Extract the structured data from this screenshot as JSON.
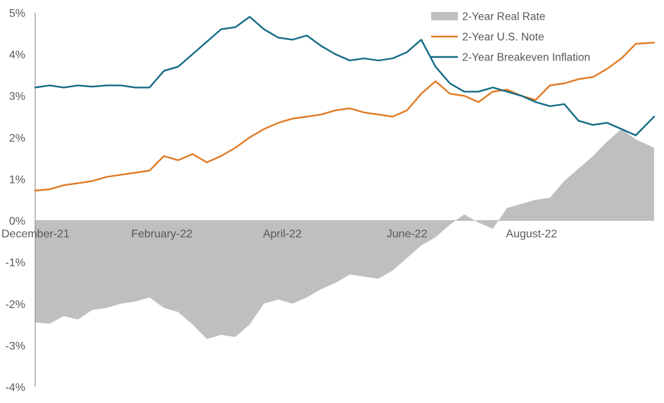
{
  "chart_data": {
    "type": "line",
    "title": "",
    "xlabel": "",
    "ylabel": "",
    "ylim": [
      -4,
      5
    ],
    "y_ticks": [
      "5%",
      "4%",
      "3%",
      "2%",
      "1%",
      "0%",
      "-1%",
      "-2%",
      "-3%",
      "-4%"
    ],
    "x_range": [
      "2021-12-01",
      "2022-09-30"
    ],
    "x_ticks": [
      {
        "label": "December-21",
        "date": "2021-12-01"
      },
      {
        "label": "February-22",
        "date": "2022-02-01"
      },
      {
        "label": "April-22",
        "date": "2022-04-01"
      },
      {
        "label": "June-22",
        "date": "2022-06-01"
      },
      {
        "label": "August-22",
        "date": "2022-08-01"
      }
    ],
    "grid": false,
    "legend": "top-right",
    "series": [
      {
        "name": "2-Year Real Rate",
        "kind": "area",
        "color": "#bfbfbf",
        "points": [
          [
            "2021-12-01",
            -2.45
          ],
          [
            "2021-12-08",
            -2.48
          ],
          [
            "2021-12-15",
            -2.3
          ],
          [
            "2021-12-22",
            -2.38
          ],
          [
            "2021-12-29",
            -2.15
          ],
          [
            "2022-01-05",
            -2.1
          ],
          [
            "2022-01-12",
            -2.0
          ],
          [
            "2022-01-19",
            -1.95
          ],
          [
            "2022-01-26",
            -1.85
          ],
          [
            "2022-02-02",
            -2.1
          ],
          [
            "2022-02-09",
            -2.2
          ],
          [
            "2022-02-16",
            -2.5
          ],
          [
            "2022-02-23",
            -2.85
          ],
          [
            "2022-03-02",
            -2.75
          ],
          [
            "2022-03-09",
            -2.8
          ],
          [
            "2022-03-16",
            -2.5
          ],
          [
            "2022-03-23",
            -2.0
          ],
          [
            "2022-03-30",
            -1.9
          ],
          [
            "2022-04-06",
            -2.0
          ],
          [
            "2022-04-13",
            -1.85
          ],
          [
            "2022-04-20",
            -1.65
          ],
          [
            "2022-04-27",
            -1.5
          ],
          [
            "2022-05-04",
            -1.3
          ],
          [
            "2022-05-11",
            -1.35
          ],
          [
            "2022-05-18",
            -1.4
          ],
          [
            "2022-05-25",
            -1.2
          ],
          [
            "2022-06-01",
            -0.9
          ],
          [
            "2022-06-08",
            -0.6
          ],
          [
            "2022-06-15",
            -0.4
          ],
          [
            "2022-06-22",
            -0.1
          ],
          [
            "2022-06-29",
            0.15
          ],
          [
            "2022-07-06",
            -0.05
          ],
          [
            "2022-07-13",
            -0.2
          ],
          [
            "2022-07-20",
            0.3
          ],
          [
            "2022-07-27",
            0.4
          ],
          [
            "2022-08-03",
            0.5
          ],
          [
            "2022-08-10",
            0.55
          ],
          [
            "2022-08-17",
            0.95
          ],
          [
            "2022-08-24",
            1.25
          ],
          [
            "2022-08-31",
            1.55
          ],
          [
            "2022-09-07",
            1.9
          ],
          [
            "2022-09-14",
            2.2
          ],
          [
            "2022-09-21",
            1.95
          ],
          [
            "2022-09-30",
            1.75
          ]
        ]
      },
      {
        "name": "2-Year U.S. Note",
        "kind": "line",
        "color": "#e07b24",
        "points": [
          [
            "2021-12-01",
            0.72
          ],
          [
            "2021-12-08",
            0.75
          ],
          [
            "2021-12-15",
            0.85
          ],
          [
            "2021-12-22",
            0.9
          ],
          [
            "2021-12-29",
            0.95
          ],
          [
            "2022-01-05",
            1.05
          ],
          [
            "2022-01-12",
            1.1
          ],
          [
            "2022-01-19",
            1.15
          ],
          [
            "2022-01-26",
            1.2
          ],
          [
            "2022-02-02",
            1.55
          ],
          [
            "2022-02-09",
            1.45
          ],
          [
            "2022-02-16",
            1.6
          ],
          [
            "2022-02-23",
            1.4
          ],
          [
            "2022-03-02",
            1.55
          ],
          [
            "2022-03-09",
            1.75
          ],
          [
            "2022-03-16",
            2.0
          ],
          [
            "2022-03-23",
            2.2
          ],
          [
            "2022-03-30",
            2.35
          ],
          [
            "2022-04-06",
            2.45
          ],
          [
            "2022-04-13",
            2.5
          ],
          [
            "2022-04-20",
            2.55
          ],
          [
            "2022-04-27",
            2.65
          ],
          [
            "2022-05-04",
            2.7
          ],
          [
            "2022-05-11",
            2.6
          ],
          [
            "2022-05-18",
            2.55
          ],
          [
            "2022-05-25",
            2.5
          ],
          [
            "2022-06-01",
            2.65
          ],
          [
            "2022-06-08",
            3.05
          ],
          [
            "2022-06-15",
            3.35
          ],
          [
            "2022-06-22",
            3.05
          ],
          [
            "2022-06-29",
            3.0
          ],
          [
            "2022-07-06",
            2.85
          ],
          [
            "2022-07-13",
            3.1
          ],
          [
            "2022-07-20",
            3.15
          ],
          [
            "2022-07-27",
            3.0
          ],
          [
            "2022-08-03",
            2.9
          ],
          [
            "2022-08-10",
            3.25
          ],
          [
            "2022-08-17",
            3.3
          ],
          [
            "2022-08-24",
            3.4
          ],
          [
            "2022-08-31",
            3.45
          ],
          [
            "2022-09-07",
            3.65
          ],
          [
            "2022-09-14",
            3.9
          ],
          [
            "2022-09-21",
            4.25
          ],
          [
            "2022-09-30",
            4.28
          ]
        ]
      },
      {
        "name": "2-Year Breakeven Inflation",
        "kind": "line",
        "color": "#156c86",
        "points": [
          [
            "2021-12-01",
            3.2
          ],
          [
            "2021-12-08",
            3.25
          ],
          [
            "2021-12-15",
            3.2
          ],
          [
            "2021-12-22",
            3.25
          ],
          [
            "2021-12-29",
            3.22
          ],
          [
            "2022-01-05",
            3.25
          ],
          [
            "2022-01-12",
            3.25
          ],
          [
            "2022-01-19",
            3.2
          ],
          [
            "2022-01-26",
            3.2
          ],
          [
            "2022-02-02",
            3.6
          ],
          [
            "2022-02-09",
            3.7
          ],
          [
            "2022-02-16",
            4.0
          ],
          [
            "2022-02-23",
            4.3
          ],
          [
            "2022-03-02",
            4.6
          ],
          [
            "2022-03-09",
            4.65
          ],
          [
            "2022-03-16",
            4.9
          ],
          [
            "2022-03-23",
            4.6
          ],
          [
            "2022-03-30",
            4.4
          ],
          [
            "2022-04-06",
            4.35
          ],
          [
            "2022-04-13",
            4.45
          ],
          [
            "2022-04-20",
            4.2
          ],
          [
            "2022-04-27",
            4.0
          ],
          [
            "2022-05-04",
            3.85
          ],
          [
            "2022-05-11",
            3.9
          ],
          [
            "2022-05-18",
            3.85
          ],
          [
            "2022-05-25",
            3.9
          ],
          [
            "2022-06-01",
            4.05
          ],
          [
            "2022-06-08",
            4.35
          ],
          [
            "2022-06-15",
            3.7
          ],
          [
            "2022-06-22",
            3.3
          ],
          [
            "2022-06-29",
            3.1
          ],
          [
            "2022-07-06",
            3.1
          ],
          [
            "2022-07-13",
            3.2
          ],
          [
            "2022-07-20",
            3.1
          ],
          [
            "2022-07-27",
            3.0
          ],
          [
            "2022-08-03",
            2.85
          ],
          [
            "2022-08-10",
            2.75
          ],
          [
            "2022-08-17",
            2.8
          ],
          [
            "2022-08-24",
            2.4
          ],
          [
            "2022-08-31",
            2.3
          ],
          [
            "2022-09-07",
            2.35
          ],
          [
            "2022-09-14",
            2.2
          ],
          [
            "2022-09-21",
            2.05
          ],
          [
            "2022-09-30",
            2.5
          ]
        ]
      }
    ]
  }
}
